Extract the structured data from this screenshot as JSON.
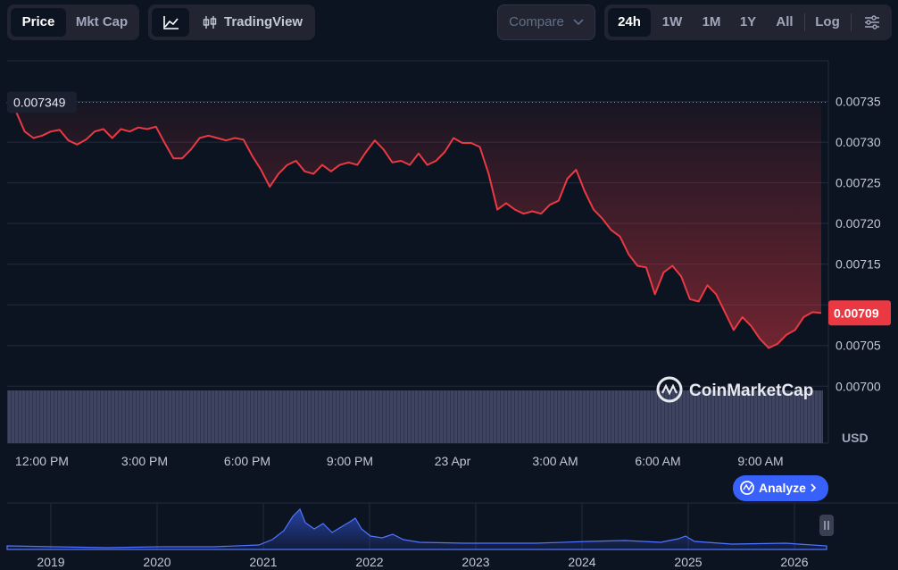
{
  "ui": {
    "price": "Price",
    "mkt_cap": "Mkt Cap",
    "tradingview": "TradingView",
    "compare": "Compare",
    "ranges": [
      "24h",
      "1W",
      "1M",
      "1Y",
      "All"
    ],
    "log": "Log",
    "currency": "USD",
    "watermark": "CoinMarketCap",
    "analyze": "Analyze"
  },
  "chart_data": {
    "type": "line",
    "color": "#ea3943",
    "values": [
      0.007349,
      0.007338,
      0.007313,
      0.007305,
      0.007308,
      0.007313,
      0.007315,
      0.007302,
      0.007297,
      0.007303,
      0.007313,
      0.007316,
      0.007305,
      0.007316,
      0.007313,
      0.007318,
      0.007316,
      0.007319,
      0.007299,
      0.00728,
      0.00728,
      0.007291,
      0.007305,
      0.007308,
      0.007305,
      0.007302,
      0.007305,
      0.007303,
      0.007283,
      0.007266,
      0.007245,
      0.007261,
      0.007272,
      0.007277,
      0.007264,
      0.007261,
      0.007272,
      0.007264,
      0.007272,
      0.007275,
      0.007272,
      0.007288,
      0.007302,
      0.007291,
      0.007275,
      0.007277,
      0.007272,
      0.007286,
      0.007272,
      0.007277,
      0.007288,
      0.007305,
      0.007299,
      0.007299,
      0.007294,
      0.007261,
      0.007217,
      0.007225,
      0.007217,
      0.007212,
      0.007215,
      0.007212,
      0.007223,
      0.007228,
      0.007255,
      0.007266,
      0.007239,
      0.007217,
      0.007206,
      0.007192,
      0.007184,
      0.007162,
      0.007148,
      0.007146,
      0.007113,
      0.00714,
      0.007148,
      0.007135,
      0.007107,
      0.007104,
      0.007124,
      0.007113,
      0.007091,
      0.007069,
      0.007085,
      0.007074,
      0.007058,
      0.007047,
      0.007052,
      0.007063,
      0.007069,
      0.007085,
      0.007091,
      0.00709
    ],
    "x_labels": [
      "12:00 PM",
      "3:00 PM",
      "6:00 PM",
      "9:00 PM",
      "23 Apr",
      "3:00 AM",
      "6:00 AM",
      "9:00 AM"
    ],
    "ylim": [
      0.00693,
      0.0074
    ],
    "yticks": [
      {
        "value": 0.007,
        "label": "0.00700"
      },
      0.00705,
      {
        "value": 0.0071,
        "label": "0.00710"
      },
      0.00715,
      {
        "value": 0.0072,
        "label": "0.00720"
      },
      0.00725,
      {
        "value": 0.0073,
        "label": "0.00730"
      },
      0.00735
    ],
    "grid": true,
    "open_price": 0.007349,
    "last_price": 0.00709
  },
  "navigator": {
    "x_labels": [
      "2019",
      "2020",
      "2021",
      "2022",
      "2023",
      "2024",
      "2025",
      "2026"
    ]
  }
}
